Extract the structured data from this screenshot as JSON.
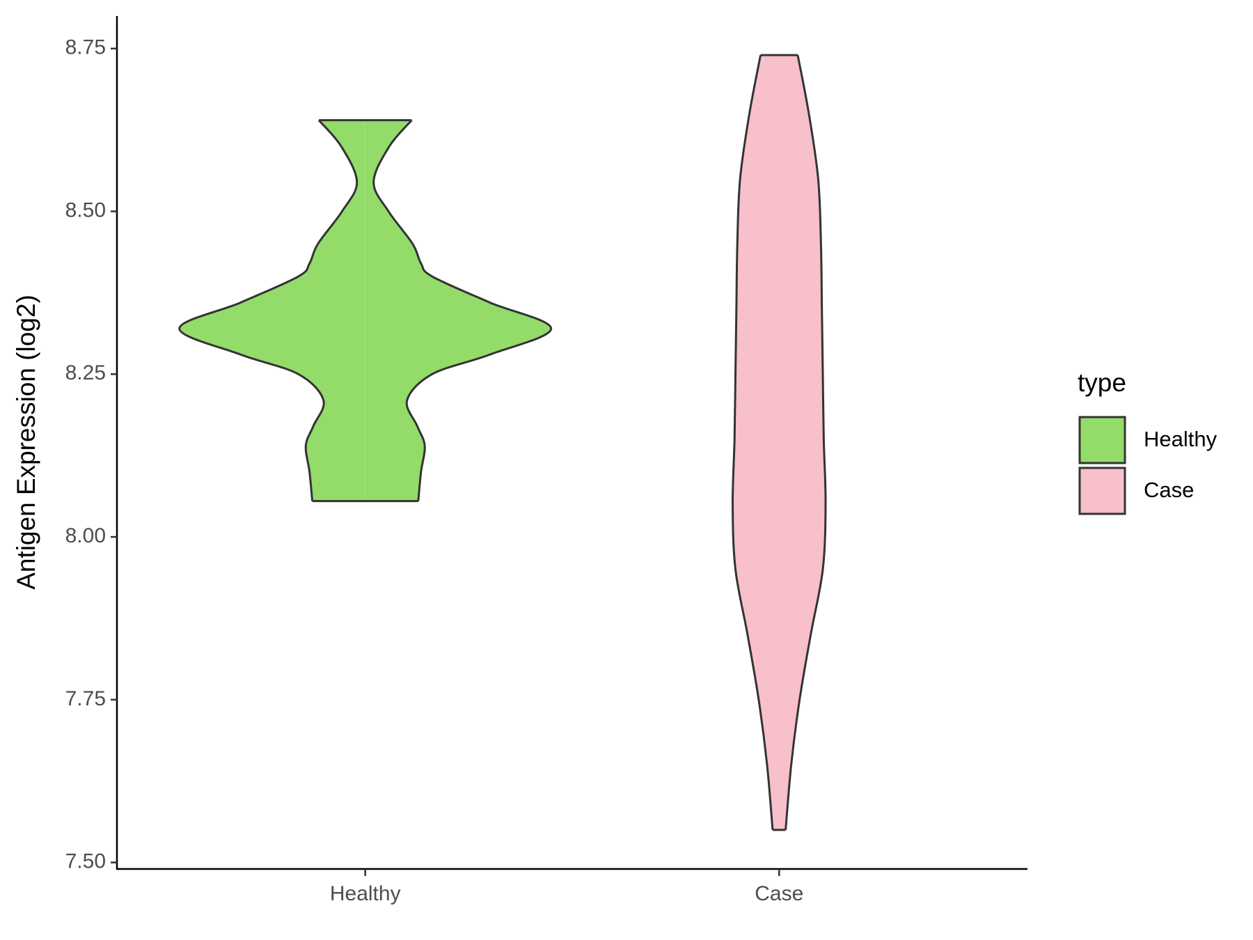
{
  "chart_data": {
    "type": "violin",
    "y_label": "Antigen Expression (log2)",
    "categories": [
      "Healthy",
      "Case"
    ],
    "series": [
      {
        "name": "Healthy",
        "color": "#93dc6a",
        "y": [
          8.64,
          8.6,
          8.545,
          8.5,
          8.45,
          8.42,
          8.4,
          8.36,
          8.32,
          8.28,
          8.25,
          8.21,
          8.17,
          8.14,
          8.1,
          8.055
        ],
        "width": [
          0.25,
          0.13,
          0.045,
          0.125,
          0.255,
          0.3,
          0.36,
          0.67,
          1.0,
          0.67,
          0.36,
          0.225,
          0.28,
          0.32,
          0.3,
          0.285
        ]
      },
      {
        "name": "Case",
        "color": "#f7c0cb",
        "y": [
          8.74,
          8.65,
          8.55,
          8.45,
          8.35,
          8.25,
          8.15,
          8.05,
          7.95,
          7.85,
          7.75,
          7.65,
          7.55
        ],
        "width": [
          0.1,
          0.16,
          0.21,
          0.225,
          0.23,
          0.235,
          0.24,
          0.25,
          0.235,
          0.17,
          0.11,
          0.065,
          0.035
        ]
      }
    ],
    "ylim": [
      7.49,
      8.8
    ],
    "yticks": [
      {
        "value": 7.5,
        "label": "7.50"
      },
      7.75,
      {
        "value": 8.0,
        "label": "8.00"
      },
      8.25,
      {
        "value": 8.5,
        "label": "8.50"
      },
      8.75
    ],
    "legend_title": "type",
    "legend": "right"
  }
}
